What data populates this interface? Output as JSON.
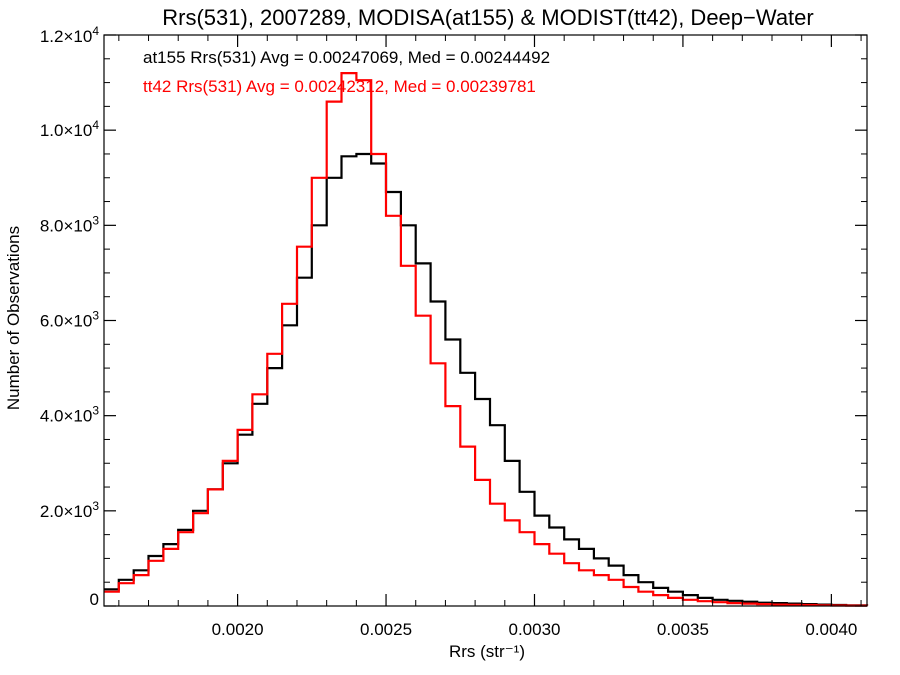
{
  "chart_data": {
    "type": "line",
    "title": "Rrs(531), 2007289, MODISA(at155) & MODIST(tt42), Deep−Water",
    "xlabel": "Rrs (str⁻¹)",
    "ylabel": "Number of Observations",
    "xlim": [
      0.00155,
      0.00412
    ],
    "ylim": [
      0,
      12000
    ],
    "grid": false,
    "legend_placement": "top-left",
    "x_ticks": [
      {
        "value": 0.002,
        "label": "0.0020"
      },
      {
        "value": 0.0025,
        "label": "0.0025"
      },
      {
        "value": 0.003,
        "label": "0.0030"
      },
      {
        "value": 0.0035,
        "label": "0.0035"
      },
      {
        "value": 0.004,
        "label": "0.0040"
      }
    ],
    "y_ticks": [
      {
        "value": 0,
        "base": "0",
        "exp": ""
      },
      {
        "value": 2000,
        "base": "2.0×10",
        "exp": "3"
      },
      {
        "value": 4000,
        "base": "4.0×10",
        "exp": "3"
      },
      {
        "value": 6000,
        "base": "6.0×10",
        "exp": "3"
      },
      {
        "value": 8000,
        "base": "8.0×10",
        "exp": "3"
      },
      {
        "value": 10000,
        "base": "1.0×10",
        "exp": "4"
      },
      {
        "value": 12000,
        "base": "1.2×10",
        "exp": "4"
      }
    ],
    "annotations": [
      "at155 Rrs(531) Avg = 0.00247069, Med = 0.00244492",
      "tt42 Rrs(531) Avg = 0.00242312, Med = 0.00239781"
    ],
    "series": [
      {
        "color": "#000000",
        "x": [
          0.00155,
          0.0016,
          0.00165,
          0.0017,
          0.00175,
          0.0018,
          0.00185,
          0.0019,
          0.00195,
          0.002,
          0.00205,
          0.0021,
          0.00215,
          0.0022,
          0.00225,
          0.0023,
          0.00235,
          0.0024,
          0.00245,
          0.0025,
          0.00255,
          0.0026,
          0.00265,
          0.0027,
          0.00275,
          0.0028,
          0.00285,
          0.0029,
          0.00295,
          0.003,
          0.00305,
          0.0031,
          0.00315,
          0.0032,
          0.00325,
          0.0033,
          0.00335,
          0.0034,
          0.00345,
          0.0035,
          0.00355,
          0.0036,
          0.00365,
          0.0037,
          0.00375,
          0.0038,
          0.00385,
          0.0039,
          0.00395,
          0.004,
          0.00405,
          0.00412
        ],
        "y": [
          350,
          550,
          750,
          1050,
          1300,
          1600,
          2000,
          2450,
          3000,
          3600,
          4250,
          5000,
          5900,
          6900,
          8000,
          9000,
          9450,
          9500,
          9300,
          8700,
          8000,
          7200,
          6400,
          5600,
          4900,
          4350,
          3800,
          3050,
          2400,
          1900,
          1650,
          1400,
          1200,
          1000,
          850,
          650,
          500,
          380,
          300,
          230,
          170,
          130,
          110,
          90,
          70,
          60,
          50,
          40,
          30,
          20,
          15,
          10
        ]
      },
      {
        "color": "#ff0000",
        "x": [
          0.00155,
          0.0016,
          0.00165,
          0.0017,
          0.00175,
          0.0018,
          0.00185,
          0.0019,
          0.00195,
          0.002,
          0.00205,
          0.0021,
          0.00215,
          0.0022,
          0.00225,
          0.0023,
          0.00235,
          0.0024,
          0.00245,
          0.0025,
          0.00255,
          0.0026,
          0.00265,
          0.0027,
          0.00275,
          0.0028,
          0.00285,
          0.0029,
          0.00295,
          0.003,
          0.00305,
          0.0031,
          0.00315,
          0.0032,
          0.00325,
          0.0033,
          0.00335,
          0.0034,
          0.00345,
          0.0035,
          0.00355,
          0.0036,
          0.00365,
          0.0037,
          0.00375,
          0.0038,
          0.00385,
          0.0039,
          0.00395,
          0.004,
          0.00405,
          0.00412
        ],
        "y": [
          300,
          480,
          650,
          950,
          1200,
          1550,
          1950,
          2450,
          3050,
          3700,
          4450,
          5300,
          6350,
          7550,
          9000,
          10600,
          11200,
          11050,
          9500,
          8200,
          7150,
          6100,
          5100,
          4200,
          3350,
          2650,
          2150,
          1800,
          1550,
          1300,
          1100,
          900,
          750,
          650,
          550,
          400,
          300,
          230,
          170,
          130,
          100,
          80,
          60,
          50,
          40,
          30,
          25,
          20,
          15,
          10,
          8,
          5
        ]
      }
    ]
  }
}
